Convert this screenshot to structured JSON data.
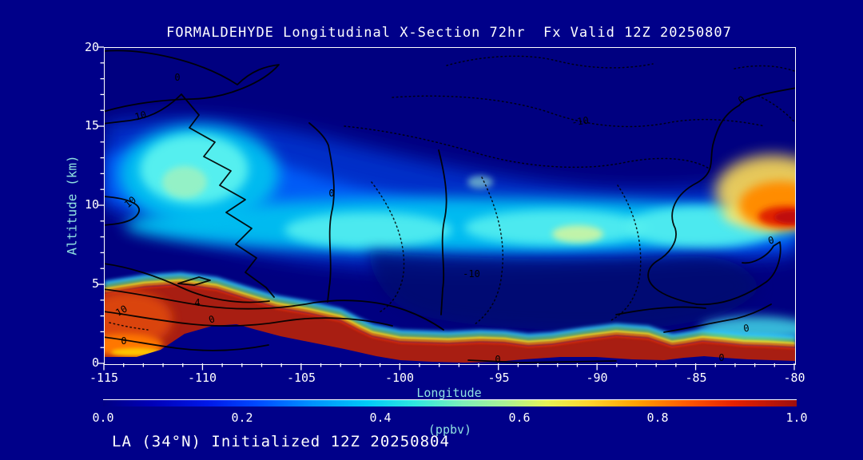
{
  "title": "FORMALDEHYDE Longitudinal X-Section 72hr  Fx Valid 12Z 20250807",
  "init_line": "LA (34°N) Initialized 12Z 20250804",
  "axes": {
    "x": {
      "label": "Longitude",
      "range": [
        -115,
        -80
      ],
      "major_step": 5,
      "minor_step": 1,
      "ticks": [
        "-115",
        "-110",
        "-105",
        "-100",
        "-95",
        "-90",
        "-85",
        "-80"
      ]
    },
    "y": {
      "label": "Altitude (km)",
      "range": [
        0,
        20
      ],
      "major_step": 5,
      "minor_step": 1,
      "ticks": [
        "0",
        "5",
        "10",
        "15",
        "20"
      ]
    }
  },
  "colorbar": {
    "units": "(ppbv)",
    "min": 0.0,
    "max": 1.0,
    "ticks": [
      "0.0",
      "0.2",
      "0.4",
      "0.6",
      "0.8",
      "1.0"
    ],
    "colors": [
      "#000084",
      "#0018e8",
      "#0048ff",
      "#0090ff",
      "#00c8f8",
      "#2fe8e0",
      "#7fefb8",
      "#aaf294",
      "#e8f455",
      "#ffd62e",
      "#ffa000",
      "#ff5a00",
      "#e52000",
      "#9e0e0e"
    ]
  },
  "contour_labels": [
    {
      "text": "0",
      "line": "solid",
      "lon": -111.2,
      "alt_km": 18.1
    },
    {
      "text": "10",
      "line": "solid",
      "lon": -113.0,
      "alt_km": 15.6
    },
    {
      "text": "10",
      "line": "solid",
      "lon": -113.5,
      "alt_km": 10.2
    },
    {
      "text": "0",
      "line": "solid",
      "lon": -103.4,
      "alt_km": 10.7
    },
    {
      "text": "-10",
      "line": "dotted",
      "lon": -90.8,
      "alt_km": 15.3
    },
    {
      "text": "-10",
      "line": "dotted",
      "lon": -96.3,
      "alt_km": 5.6
    },
    {
      "text": "0",
      "line": "solid",
      "lon": -82.7,
      "alt_km": 16.7
    },
    {
      "text": "0",
      "line": "solid",
      "lon": -81.2,
      "alt_km": 7.8
    },
    {
      "text": "4",
      "line": "solid",
      "lon": -110.2,
      "alt_km": 3.8
    },
    {
      "text": "10",
      "line": "solid",
      "lon": -114.1,
      "alt_km": 3.3
    },
    {
      "text": "0",
      "line": "solid",
      "lon": -114.0,
      "alt_km": 1.4
    },
    {
      "text": "0",
      "line": "solid",
      "lon": -109.5,
      "alt_km": 2.8
    },
    {
      "text": "0",
      "line": "solid",
      "lon": -95.0,
      "alt_km": 0.3
    },
    {
      "text": "0",
      "line": "solid",
      "lon": -82.4,
      "alt_km": 2.2
    },
    {
      "text": "0",
      "line": "solid",
      "lon": -83.6,
      "alt_km": 0.4
    }
  ],
  "chart_data": {
    "type": "heatmap",
    "subtype": "filled-contour-cross-section",
    "title": "FORMALDEHYDE Longitudinal X-Section 72hr  Fx Valid 12Z 20250807",
    "annotation": "LA (34°N) Initialized 12Z 20250804",
    "xlabel": "Longitude",
    "ylabel": "Altitude (km)",
    "zlabel": "(ppbv)",
    "xlim": [
      -115,
      -80
    ],
    "ylim": [
      0,
      20
    ],
    "zlim": [
      0.0,
      1.0
    ],
    "grid": false,
    "legend_position": "bottom-colorbar",
    "x": [
      -115,
      -110,
      -105,
      -100,
      -95,
      -90,
      -85,
      -80
    ],
    "y_levels_km": [
      0,
      2,
      4,
      6,
      8,
      10,
      12,
      14,
      16,
      18,
      20
    ],
    "values_ppbv_rows_top_to_bottom": [
      {
        "alt_km": 20,
        "values": [
          0.02,
          0.02,
          0.02,
          0.02,
          0.02,
          0.02,
          0.02,
          0.02
        ]
      },
      {
        "alt_km": 18,
        "values": [
          0.05,
          0.03,
          0.02,
          0.02,
          0.02,
          0.02,
          0.02,
          0.05
        ]
      },
      {
        "alt_km": 16,
        "values": [
          0.1,
          0.1,
          0.05,
          0.03,
          0.03,
          0.02,
          0.05,
          0.1
        ]
      },
      {
        "alt_km": 14,
        "values": [
          0.2,
          0.3,
          0.15,
          0.1,
          0.05,
          0.05,
          0.1,
          0.15
        ]
      },
      {
        "alt_km": 12,
        "values": [
          0.25,
          0.45,
          0.3,
          0.2,
          0.15,
          0.1,
          0.2,
          0.3
        ]
      },
      {
        "alt_km": 10,
        "values": [
          0.3,
          0.5,
          0.35,
          0.4,
          0.35,
          0.3,
          0.35,
          0.85
        ]
      },
      {
        "alt_km": 8,
        "values": [
          0.2,
          0.35,
          0.3,
          0.45,
          0.4,
          0.35,
          0.4,
          0.5
        ]
      },
      {
        "alt_km": 6,
        "values": [
          0.15,
          0.25,
          0.2,
          0.3,
          0.3,
          0.2,
          0.3,
          0.35
        ]
      },
      {
        "alt_km": 4,
        "values": [
          0.2,
          0.9,
          0.15,
          0.2,
          0.15,
          0.1,
          0.25,
          0.3
        ]
      },
      {
        "alt_km": 2,
        "values": [
          0.8,
          1.1,
          0.3,
          0.3,
          0.2,
          0.15,
          0.3,
          0.4
        ]
      },
      {
        "alt_km": 0,
        "values": [
          1.0,
          1.1,
          1.1,
          1.1,
          1.0,
          1.0,
          1.0,
          1.1
        ]
      }
    ],
    "features": [
      "dark-red boundary-layer maximum (>1.0 ppbv) along entire bottom, deepest (to ~5 km) between -115 and -106",
      "bright cyan mid-troposphere band (~0.35-0.55 ppbv) near 8-13 km across all longitudes",
      "orange/red plume (~0.7-1.0 ppbv) at right edge near -80 at 8-11 km",
      "terrain mask (background navy) rising to ~2.5 km near -109",
      "black overlay contours labeled -10, 0, 4, 8, 10 (negative contours dotted)"
    ]
  }
}
